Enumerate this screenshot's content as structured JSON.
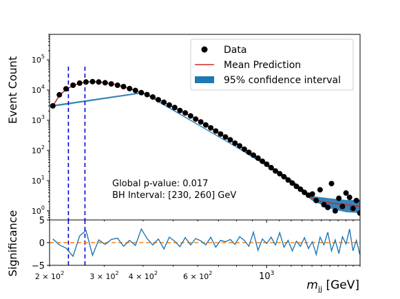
{
  "chart_data": [
    {
      "panel": "main",
      "type": "scatter",
      "xscale": "log",
      "yscale": "log",
      "xlim": [
        200,
        2000
      ],
      "ylim": [
        0.5,
        700000
      ],
      "xlabel": "",
      "ylabel": "Event Count",
      "ytick_labels": [
        {
          "value": 1,
          "base": "10",
          "exp": "0"
        },
        {
          "value": 10,
          "base": "10",
          "exp": "1"
        },
        {
          "value": 100,
          "base": "10",
          "exp": "2"
        },
        {
          "value": 1000,
          "base": "10",
          "exp": "3"
        },
        {
          "value": 10000,
          "base": "10",
          "exp": "4"
        },
        {
          "value": 100000,
          "base": "10",
          "exp": "5"
        }
      ],
      "legend": {
        "placement": "top-right",
        "entries": [
          "Data",
          "Mean Prediction",
          "95% confidence interval"
        ]
      },
      "annotations": [
        "Global p-value: 0.017",
        "BH Interval: [230, 260] GeV"
      ],
      "bh_interval": [
        230,
        260
      ],
      "colors": {
        "data": "#000000",
        "prediction": "#d62728",
        "band": "#1f77b4",
        "interval_lines": "#0000dd"
      },
      "series": [
        {
          "name": "Data",
          "x": [
            205,
            215,
            226,
            238,
            250,
            262,
            275,
            288,
            302,
            316,
            331,
            346,
            362,
            378,
            395,
            412,
            430,
            448,
            467,
            486,
            506,
            526,
            547,
            569,
            591,
            614,
            637,
            661,
            686,
            711,
            737,
            764,
            791,
            819,
            848,
            877,
            907,
            938,
            969,
            1001,
            1034,
            1068,
            1102,
            1137,
            1173,
            1210,
            1247,
            1285,
            1324,
            1364,
            1404,
            1445,
            1487,
            1530,
            1574,
            1618,
            1663,
            1709,
            1755,
            1802,
            1850,
            1898,
            1947,
            1997
          ],
          "y": [
            3000,
            7000,
            11000,
            14500,
            17000,
            18500,
            19000,
            18500,
            17500,
            16000,
            14500,
            13000,
            11200,
            9700,
            8200,
            7100,
            5900,
            4800,
            3950,
            3200,
            2650,
            2100,
            1750,
            1400,
            1100,
            880,
            700,
            560,
            440,
            350,
            280,
            225,
            175,
            142,
            110,
            87,
            70,
            56,
            44,
            35,
            27,
            21,
            17,
            13.5,
            10.5,
            8.3,
            6.5,
            5.2,
            4.1,
            3.3,
            3.6,
            2.2,
            5.0,
            1.6,
            1.3,
            8.0,
            1.0,
            2.6,
            1.4,
            3.9,
            2.8,
            1.2,
            2.2,
            0.85
          ]
        },
        {
          "name": "Mean Prediction",
          "x": [
            205,
            215,
            226,
            238,
            250,
            262,
            275,
            288,
            302,
            316,
            331,
            346,
            362,
            378,
            395,
            412,
            430,
            448,
            467,
            486,
            506,
            526,
            547,
            569,
            591,
            614,
            637,
            661,
            686,
            711,
            737,
            764,
            791,
            819,
            848,
            877,
            907,
            938,
            969,
            1001,
            1034,
            1068,
            1102,
            1137,
            1173,
            1210,
            1247,
            1285,
            1324,
            1364,
            1404,
            1445,
            1487,
            1530,
            1574,
            1618,
            1663,
            1709,
            1755,
            1802,
            1850,
            1898,
            1947,
            1997
          ],
          "y": [
            3000,
            6500,
            10500,
            14000,
            16800,
            18500,
            19000,
            18500,
            17500,
            16000,
            14400,
            12900,
            11200,
            9700,
            8250,
            7050,
            5900,
            4850,
            3950,
            3200,
            2600,
            2100,
            1700,
            1380,
            1100,
            880,
            700,
            560,
            440,
            350,
            280,
            222,
            176,
            140,
            110,
            87,
            69,
            55,
            43,
            34,
            27,
            21,
            16.5,
            13,
            10.2,
            8.0,
            6.3,
            5.0,
            4.0,
            3.2,
            2.6,
            2.3,
            2.1,
            2.0,
            1.9,
            1.8,
            1.75,
            1.7,
            1.65,
            1.6,
            1.55,
            1.5,
            1.45,
            1.4
          ]
        },
        {
          "name": "95% confidence interval",
          "x": [
            205,
            400,
            800,
            1000,
            1200,
            1400,
            1600,
            1800,
            1997
          ],
          "lower": [
            2800,
            7800,
            125,
            30,
            8.5,
            2.2,
            1.2,
            0.9,
            0.85
          ],
          "upper": [
            3200,
            8700,
            135,
            38,
            11,
            3.1,
            2.6,
            2.3,
            2.3
          ]
        }
      ]
    },
    {
      "panel": "significance",
      "type": "line",
      "xscale": "log",
      "xlim": [
        200,
        2000
      ],
      "ylim": [
        -5,
        5
      ],
      "xlabel": "m_jj [GeV]",
      "ylabel": "Significance",
      "yticks": [
        "5",
        "0",
        "−5"
      ],
      "xtick_labels": [
        {
          "value": 200,
          "mant": "2 × 10",
          "exp": "2"
        },
        {
          "value": 300,
          "mant": "3 × 10",
          "exp": "2"
        },
        {
          "value": 400,
          "mant": "4 × 10",
          "exp": "2"
        },
        {
          "value": 600,
          "mant": "6 × 10",
          "exp": "2"
        },
        {
          "value": 1000,
          "mant": "10",
          "exp": "3"
        }
      ],
      "xlabel_parts": {
        "symbol": "m",
        "subscript": "jj",
        "unit": "[GeV]"
      },
      "reference_line": 0,
      "colors": {
        "series": "#1f77b4",
        "reference": "#ff7f0e"
      },
      "series": [
        {
          "x": [
            205,
            215,
            226,
            238,
            250,
            262,
            275,
            288,
            302,
            316,
            331,
            346,
            362,
            378,
            395,
            412,
            430,
            448,
            467,
            486,
            506,
            526,
            547,
            569,
            591,
            614,
            637,
            661,
            686,
            711,
            737,
            764,
            791,
            819,
            848,
            877,
            907,
            938,
            969,
            1001,
            1034,
            1068,
            1102,
            1137,
            1173,
            1210,
            1247,
            1285,
            1324,
            1364,
            1404,
            1445,
            1487,
            1530,
            1574,
            1618,
            1663,
            1709,
            1755,
            1802,
            1850,
            1898,
            1947,
            1997
          ],
          "y": [
            0.8,
            -0.5,
            -1.2,
            -3.0,
            1.5,
            2.7,
            -2.8,
            0.6,
            -0.4,
            0.7,
            1.0,
            -0.8,
            0.5,
            -0.6,
            3.0,
            0.9,
            -0.5,
            0.8,
            -1.4,
            1.2,
            0.3,
            -0.9,
            1.1,
            -0.5,
            0.9,
            0.4,
            -0.5,
            1.2,
            -1.0,
            0.5,
            0.2,
            0.7,
            -0.4,
            1.3,
            0.5,
            -0.8,
            2.3,
            -1.7,
            0.8,
            -0.2,
            1.2,
            -0.5,
            2.2,
            -1.0,
            0.5,
            -1.8,
            0.3,
            -0.8,
            1.1,
            -1.3,
            0.2,
            -2.6,
            1.2,
            -0.5,
            2.3,
            -1.8,
            0.6,
            -2.4,
            1.3,
            -0.3,
            3.0,
            -1.8,
            0.5,
            -2.6
          ]
        }
      ]
    }
  ]
}
